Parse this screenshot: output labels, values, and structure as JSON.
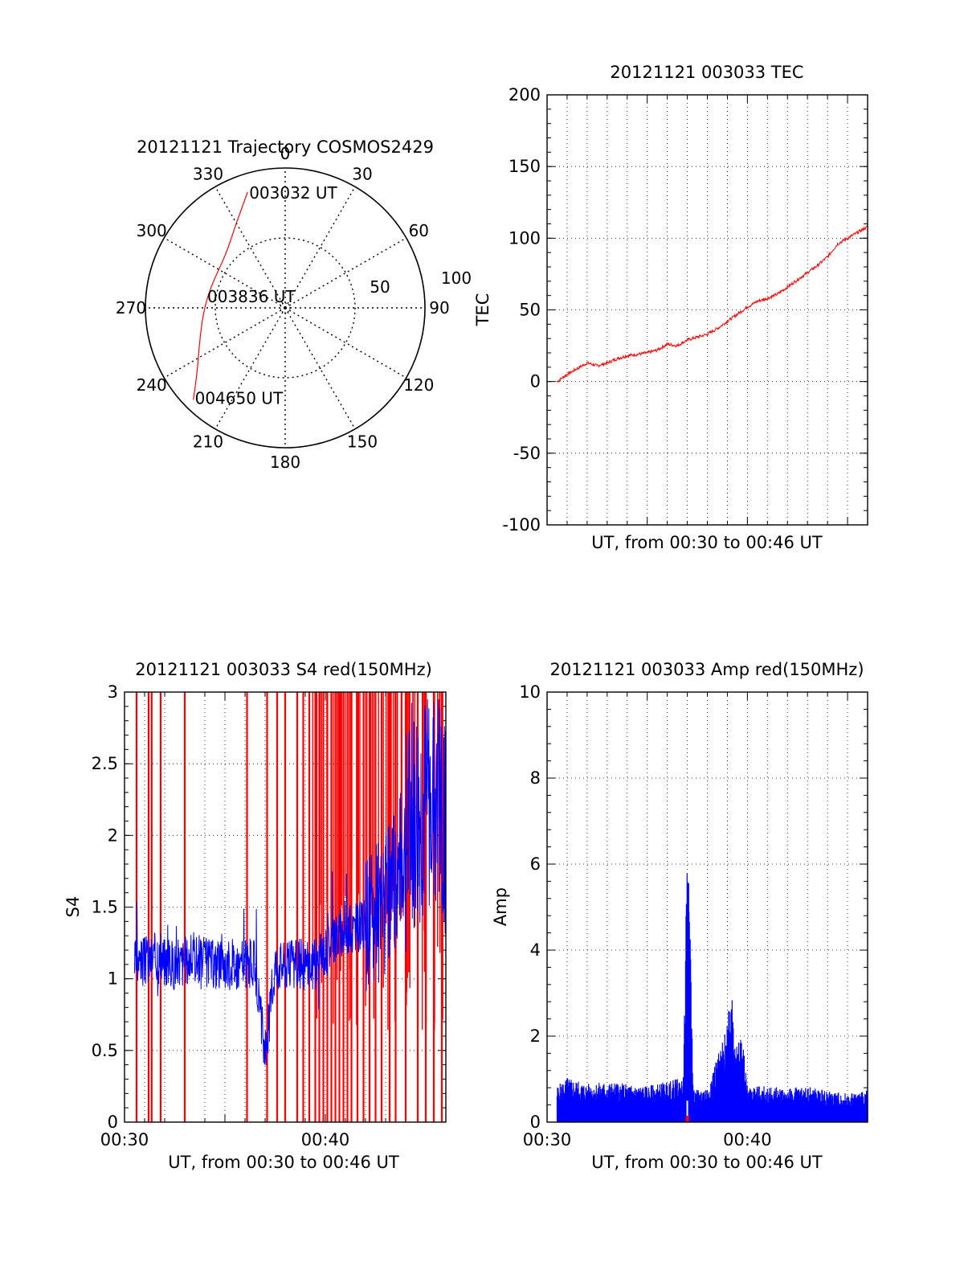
{
  "colors": {
    "red": "#ff0000",
    "blue": "#0000ff",
    "axis": "#000000",
    "grid": "#000000"
  },
  "chart_data": [
    {
      "type": "polar",
      "title": "20121121 Trajectory COSMOS2429",
      "azimuth_labels": [
        "0",
        "30",
        "60",
        "90",
        "120",
        "150",
        "180",
        "210",
        "240",
        "270",
        "300",
        "330"
      ],
      "radial_labels": [
        "50",
        "100"
      ],
      "radial_range": [
        0,
        100
      ],
      "grid": true,
      "trajectory": {
        "points": [
          {
            "az": 342,
            "r": 87,
            "label": "003032 UT"
          },
          {
            "az": 330,
            "r": 70
          },
          {
            "az": 312,
            "r": 57
          },
          {
            "az": 290,
            "r": 55
          },
          {
            "az": 270,
            "r": 58
          },
          {
            "az": 250,
            "r": 65
          },
          {
            "az": 233,
            "r": 79
          },
          {
            "az": 225,
            "r": 93,
            "label": "004650 UT"
          }
        ],
        "mid_label": "003836 UT"
      }
    },
    {
      "type": "line",
      "title": "20121121 003033 TEC",
      "xlabel": "UT, from 00:30 to 00:46 UT",
      "ylabel": "TEC",
      "ylim": [
        -100,
        200
      ],
      "yticks": [
        "200",
        "150",
        "100",
        "50",
        "0",
        "-50",
        "-100"
      ],
      "xlim": [
        0,
        16
      ],
      "grid": true,
      "series": [
        {
          "color": "red",
          "x": [
            0.5,
            1.0,
            1.5,
            2.0,
            2.5,
            3.0,
            3.5,
            4.0,
            4.5,
            5.0,
            5.5,
            6.0,
            6.5,
            7.0,
            7.5,
            8.0,
            8.5,
            9.0,
            9.5,
            10.0,
            10.5,
            11.0,
            11.5,
            12.0,
            12.5,
            13.0,
            13.5,
            14.0,
            14.5,
            15.0,
            15.5,
            16.0
          ],
          "y": [
            0,
            5,
            9,
            13,
            11,
            13,
            16,
            18,
            19,
            20,
            22,
            26,
            25,
            29,
            31,
            33,
            37,
            42,
            47,
            52,
            56,
            58,
            61,
            66,
            71,
            76,
            81,
            87,
            96,
            100,
            104,
            108
          ]
        }
      ]
    },
    {
      "type": "line",
      "title": "20121121 003033 S4 red(150MHz)",
      "xlabel": "UT, from 00:30 to 00:46 UT",
      "ylabel": "S4",
      "ylim": [
        0,
        3
      ],
      "yticks": [
        "3",
        "2.5",
        "2",
        "1.5",
        "1",
        "0.5",
        "0"
      ],
      "xlim": [
        0,
        16
      ],
      "xticks": [
        {
          "x": 0,
          "label": "00:30"
        },
        {
          "x": 10,
          "label": "00:40"
        }
      ],
      "grid": true,
      "series": [
        {
          "color": "blue",
          "x": [
            0.5,
            1.5,
            2.5,
            3.5,
            4.5,
            5.5,
            6.5,
            7.0,
            7.5,
            8.5,
            9.5,
            10.0,
            10.5,
            11.5,
            12.5,
            13.0,
            13.5,
            14.5,
            15.5,
            16.0
          ],
          "y": [
            1.1,
            1.15,
            1.1,
            1.15,
            1.1,
            1.1,
            1.1,
            0.45,
            1.1,
            1.1,
            1.1,
            1.2,
            1.3,
            1.35,
            1.4,
            1.5,
            1.7,
            2.2,
            2.3,
            2.1
          ]
        },
        {
          "color": "red",
          "kind": "spikes",
          "x": [
            0.6,
            1.2,
            1.35,
            1.8,
            3.0,
            6.1,
            7.1,
            7.6,
            8.0,
            8.6,
            8.9,
            9.2,
            9.5,
            9.7,
            9.9,
            10.1,
            10.3,
            10.5,
            10.7,
            10.9,
            11.1,
            11.3,
            11.6,
            11.9,
            12.2,
            12.5,
            12.8,
            13.2,
            13.5,
            14.0,
            14.6,
            15.0,
            15.4,
            15.8
          ]
        }
      ]
    },
    {
      "type": "bar",
      "title": "20121121 003033 Amp red(150MHz)",
      "xlabel": "UT, from 00:30 to 00:46 UT",
      "ylabel": "Amp",
      "ylim": [
        0,
        10
      ],
      "yticks": [
        "10",
        "8",
        "6",
        "4",
        "2",
        "0"
      ],
      "xlim": [
        0,
        16
      ],
      "xticks": [
        {
          "x": 0,
          "label": "00:30"
        },
        {
          "x": 10,
          "label": "00:40"
        }
      ],
      "grid": true,
      "series": [
        {
          "color": "blue",
          "x": [
            0.5,
            1.0,
            2.0,
            3.0,
            4.0,
            5.0,
            6.0,
            6.8,
            7.0,
            7.1,
            7.3,
            8.0,
            8.9,
            9.2,
            9.5,
            9.7,
            10.0,
            11.0,
            12.0,
            13.0,
            14.0,
            15.0,
            16.0
          ],
          "y": [
            0.8,
            1.0,
            0.85,
            0.9,
            0.85,
            0.8,
            0.9,
            1.0,
            6.4,
            5.5,
            0.7,
            0.8,
            2.0,
            3.3,
            1.6,
            2.1,
            0.8,
            0.8,
            0.75,
            0.8,
            0.7,
            0.65,
            0.7
          ]
        }
      ]
    }
  ]
}
